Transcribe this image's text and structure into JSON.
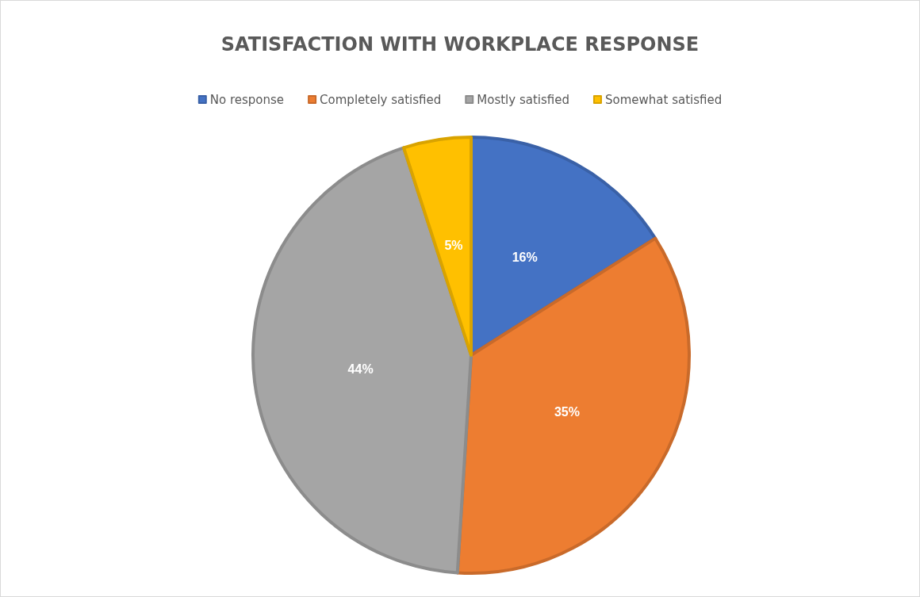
{
  "chart_data": {
    "type": "pie",
    "title": "SATISFACTION WITH WORKPLACE RESPONSE",
    "categories": [
      "No response",
      "Completely satisfied",
      "Mostly satisfied",
      "Somewhat satisfied"
    ],
    "values": [
      16,
      35,
      44,
      5
    ],
    "colors": [
      "#4472c4",
      "#ed7d31",
      "#a5a5a5",
      "#ffc000"
    ],
    "value_labels": [
      "16%",
      "35%",
      "44%",
      "5%"
    ],
    "legend": "top"
  }
}
